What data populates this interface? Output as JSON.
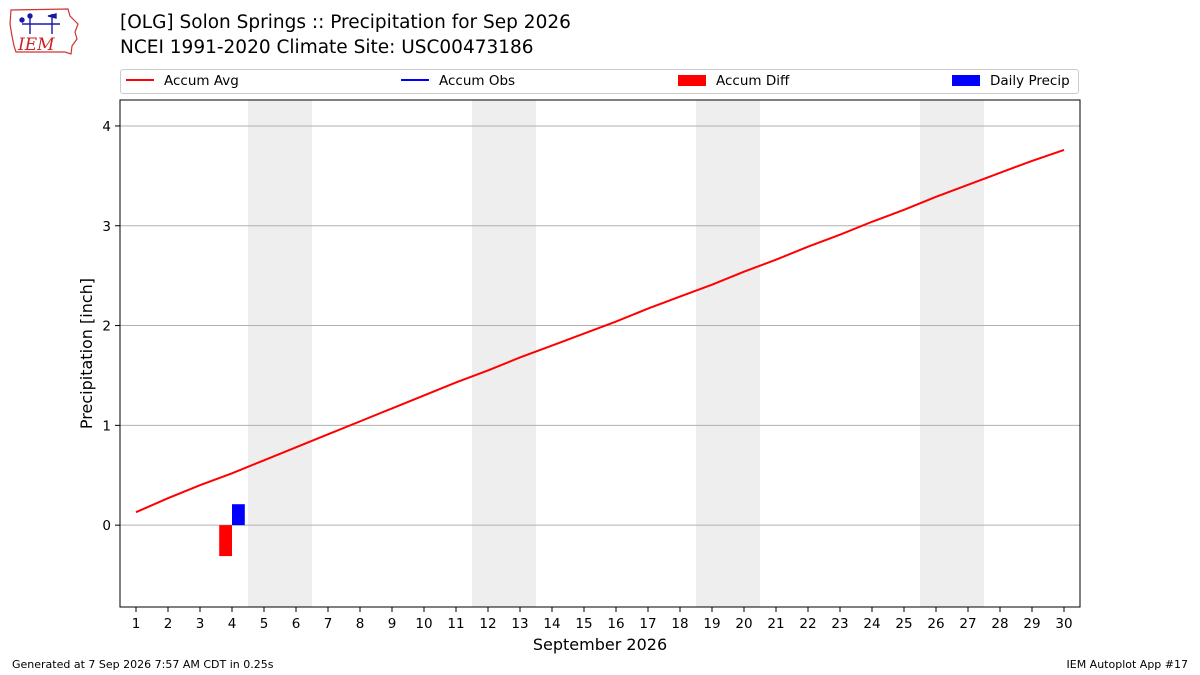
{
  "header": {
    "logo_text": "IEM",
    "title_line1": "[OLG] Solon Springs :: Precipitation for Sep 2026",
    "title_line2": "NCEI 1991-2020 Climate Site: USC00473186"
  },
  "legend": {
    "placement": "top",
    "items": [
      {
        "label": "Accum Avg",
        "kind": "line",
        "color": "#ff0000"
      },
      {
        "label": "Accum Obs",
        "kind": "line",
        "color": "#0000ff"
      },
      {
        "label": "Accum Diff",
        "kind": "bar",
        "color": "#ff0000"
      },
      {
        "label": "Daily Precip",
        "kind": "bar",
        "color": "#0000ff"
      }
    ]
  },
  "chart_data": {
    "type": "line",
    "title": "[OLG] Solon Springs :: Precipitation for Sep 2026",
    "subtitle": "NCEI 1991-2020 Climate Site: USC00473186",
    "xlabel": "September 2026",
    "ylabel": "Precipitation [inch]",
    "x": [
      1,
      2,
      3,
      4,
      5,
      6,
      7,
      8,
      9,
      10,
      11,
      12,
      13,
      14,
      15,
      16,
      17,
      18,
      19,
      20,
      21,
      22,
      23,
      24,
      25,
      26,
      27,
      28,
      29,
      30
    ],
    "xlim": [
      0.5,
      30.5
    ],
    "ylim": [
      -0.82,
      4.26
    ],
    "yticks": [
      0,
      1,
      2,
      3,
      4
    ],
    "grid": "horizontal",
    "weekend_shading": [
      [
        4.5,
        6.5
      ],
      [
        11.5,
        13.5
      ],
      [
        18.5,
        20.5
      ],
      [
        25.5,
        27.5
      ]
    ],
    "series": [
      {
        "name": "Accum Avg",
        "kind": "line",
        "color": "#ff0000",
        "values": [
          0.13,
          0.27,
          0.4,
          0.52,
          0.65,
          0.78,
          0.91,
          1.04,
          1.17,
          1.3,
          1.43,
          1.55,
          1.68,
          1.8,
          1.92,
          2.04,
          2.17,
          2.29,
          2.41,
          2.54,
          2.66,
          2.79,
          2.91,
          3.04,
          3.16,
          3.29,
          3.41,
          3.53,
          3.65,
          3.76
        ]
      },
      {
        "name": "Daily Precip",
        "kind": "bar",
        "color": "#0000ff",
        "x": [
          4
        ],
        "values": [
          0.21
        ]
      },
      {
        "name": "Accum Diff",
        "kind": "bar",
        "color": "#ff0000",
        "x": [
          4
        ],
        "values": [
          -0.31
        ]
      }
    ]
  },
  "footer": {
    "generated": "Generated at 7 Sep 2026 7:57 AM CDT in 0.25s",
    "app": "IEM Autoplot App #17"
  }
}
